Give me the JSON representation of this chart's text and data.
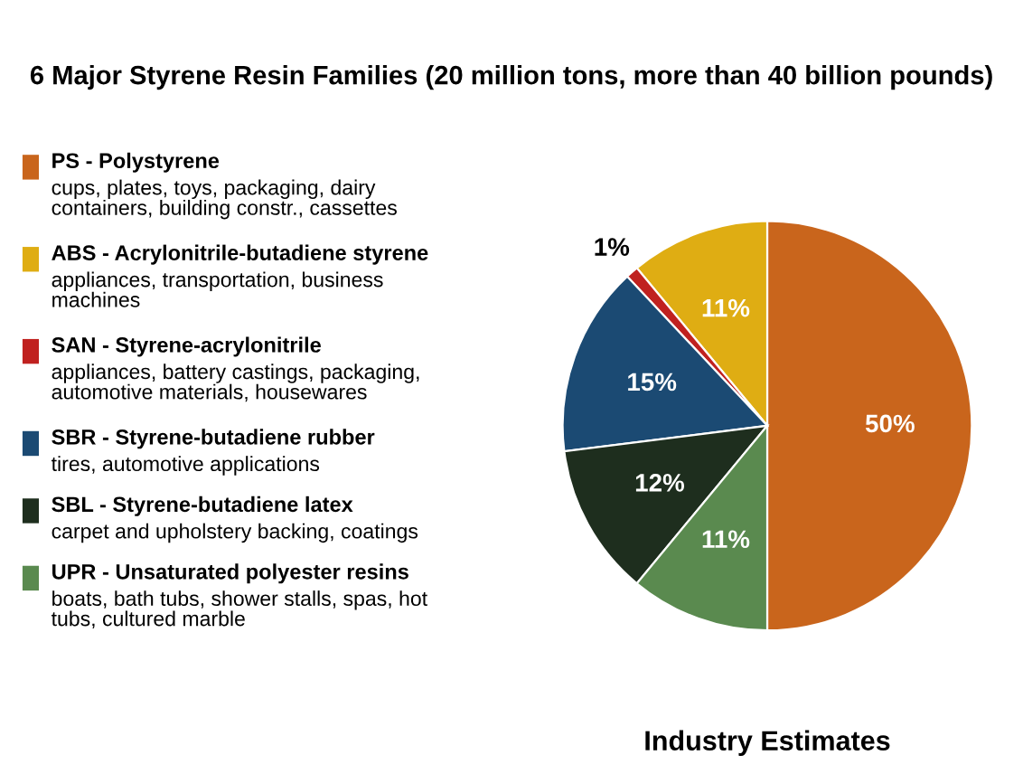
{
  "chart_data": {
    "type": "pie",
    "title": "6 Major Styrene Resin Families (20 million tons, more than 40 billion pounds)",
    "subtitle": "Industry Estimates",
    "categories": [
      "PS - Polystyrene",
      "ABS - Acrylonitrile-butadiene styrene",
      "SAN - Styrene-acrylonitrile",
      "SBR - Styrene-butadiene rubber",
      "SBL - Styrene-butadiene latex",
      "UPR - Unsaturated polyester resins"
    ],
    "values": [
      50,
      11,
      1,
      15,
      12,
      11
    ],
    "colors": [
      "#c9651c",
      "#dfad13",
      "#c0211f",
      "#1b4a73",
      "#1e2e1e",
      "#5a8a4f"
    ],
    "value_labels": [
      "50%",
      "11%",
      "1%",
      "15%",
      "12%",
      "11%"
    ],
    "annotations": [
      "cups, plates, toys, packaging, dairy\ncontainers, building constr., cassettes",
      "appliances, transportation, business\nmachines",
      "appliances, battery castings, packaging,\nautomotive materials, housewares",
      "tires, automotive applications",
      "carpet and upholstery backing, coatings",
      "boats, bath tubs, shower stalls, spas, hot\ntubs, cultured marble"
    ],
    "legend": "left"
  }
}
